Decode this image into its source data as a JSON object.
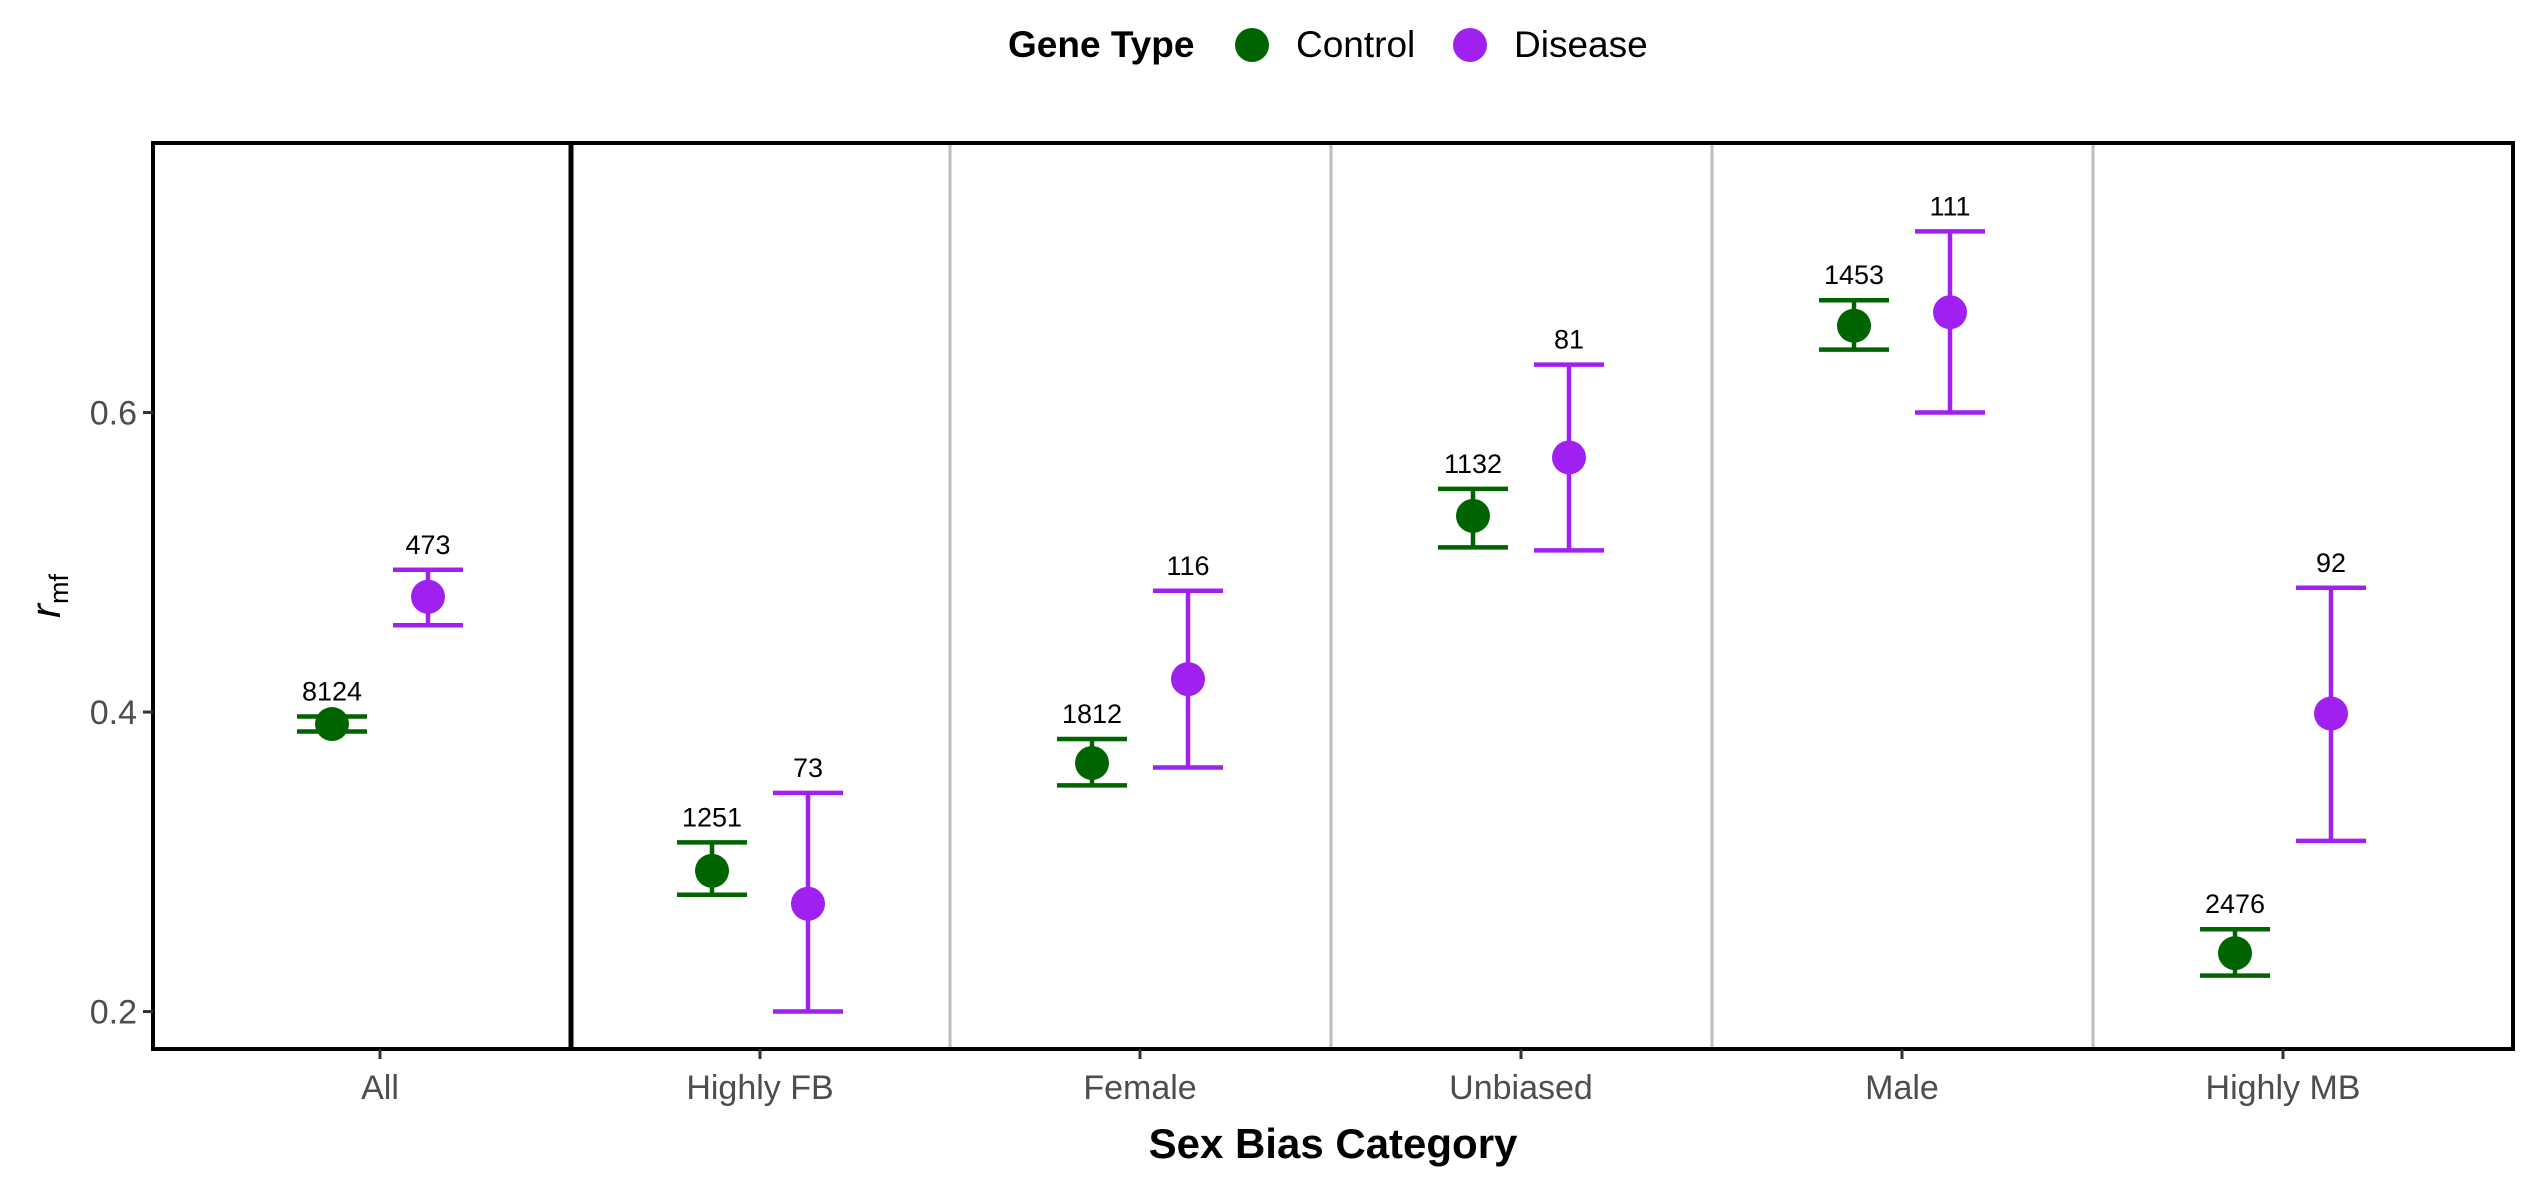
{
  "chart_data": {
    "type": "scatter",
    "title": "",
    "xlabel": "Sex Bias Category",
    "ylabel_main": "r",
    "ylabel_sub": "mf",
    "ylim": [
      0.175,
      0.78
    ],
    "yticks": [
      0.2,
      0.4,
      0.6
    ],
    "ytick_labels": [
      "0.2",
      "0.4",
      "0.6"
    ],
    "grid": "vertical separators between categories",
    "legend": {
      "position": "top",
      "title": "Gene Type",
      "entries": [
        {
          "name": "Control",
          "color": "#006400"
        },
        {
          "name": "Disease",
          "color": "#A020F0"
        }
      ]
    },
    "categories": [
      "All",
      "Highly FB",
      "Female",
      "Unbiased",
      "Male",
      "Highly MB"
    ],
    "series": [
      {
        "name": "Control",
        "color": "#006400",
        "values": [
          0.392,
          0.294,
          0.366,
          0.531,
          0.658,
          0.239
        ],
        "lower": [
          0.387,
          0.278,
          0.351,
          0.51,
          0.642,
          0.224
        ],
        "upper": [
          0.397,
          0.313,
          0.382,
          0.549,
          0.675,
          0.255
        ],
        "counts": [
          "8124",
          "1251",
          "1812",
          "1132",
          "1453",
          "2476"
        ]
      },
      {
        "name": "Disease",
        "color": "#A020F0",
        "values": [
          0.477,
          0.272,
          0.422,
          0.57,
          0.667,
          0.399
        ],
        "lower": [
          0.458,
          0.2,
          0.363,
          0.508,
          0.6,
          0.314
        ],
        "upper": [
          0.495,
          0.346,
          0.481,
          0.632,
          0.721,
          0.483
        ],
        "counts": [
          "473",
          "73",
          "116",
          "81",
          "111",
          "92"
        ]
      }
    ]
  }
}
